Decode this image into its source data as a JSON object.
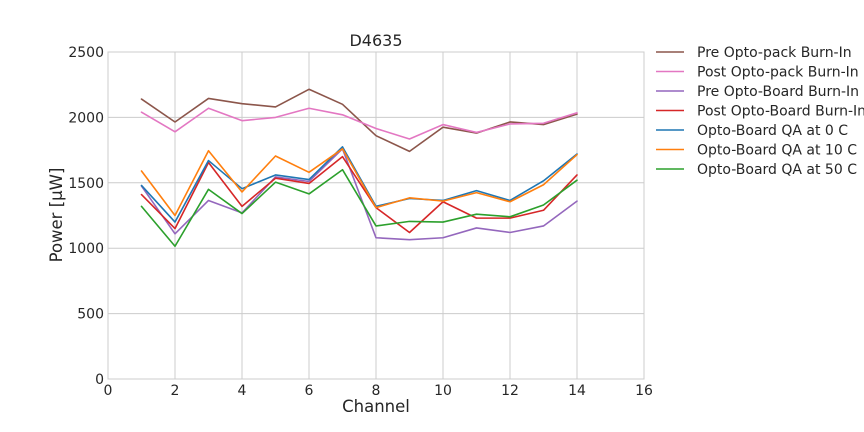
{
  "chart_data": {
    "type": "line",
    "title": "D4635",
    "xlabel": "Channel",
    "ylabel": "Power [µW]",
    "xlim": [
      0,
      16
    ],
    "ylim": [
      0,
      2500
    ],
    "xticks": [
      0,
      2,
      4,
      6,
      8,
      10,
      12,
      14,
      16
    ],
    "yticks": [
      0,
      500,
      1000,
      1500,
      2000,
      2500
    ],
    "grid": true,
    "legend_position": "outside-right",
    "x": [
      1,
      2,
      3,
      4,
      5,
      6,
      7,
      8,
      9,
      10,
      11,
      12,
      13,
      14
    ],
    "series": [
      {
        "name": "Pre Opto-pack Burn-In",
        "color": "#8c564b",
        "values": [
          2140,
          1965,
          2145,
          2105,
          2080,
          2215,
          2100,
          1860,
          1740,
          1925,
          1880,
          1965,
          1945,
          2025
        ]
      },
      {
        "name": "Post Opto-pack Burn-In",
        "color": "#e377c2",
        "values": [
          2040,
          1890,
          2070,
          1975,
          2000,
          2070,
          2020,
          1915,
          1835,
          1945,
          1885,
          1950,
          1955,
          2035
        ]
      },
      {
        "name": "Pre Opto-Board Burn-In",
        "color": "#9467bd",
        "values": [
          1475,
          1110,
          1365,
          1270,
          1545,
          1510,
          1760,
          1080,
          1065,
          1080,
          1155,
          1120,
          1170,
          1360
        ]
      },
      {
        "name": "Post Opto-Board Burn-In",
        "color": "#d62728",
        "values": [
          1410,
          1150,
          1655,
          1320,
          1535,
          1495,
          1700,
          1310,
          1120,
          1355,
          1230,
          1230,
          1290,
          1560
        ]
      },
      {
        "name": "Opto-Board QA at 0 C",
        "color": "#1f77b4",
        "values": [
          1480,
          1200,
          1670,
          1455,
          1560,
          1525,
          1775,
          1320,
          1380,
          1365,
          1440,
          1365,
          1515,
          1720
        ]
      },
      {
        "name": "Opto-Board QA at 10 C",
        "color": "#ff7f0e",
        "values": [
          1590,
          1250,
          1745,
          1430,
          1705,
          1580,
          1760,
          1310,
          1385,
          1360,
          1425,
          1355,
          1485,
          1715
        ]
      },
      {
        "name": "Opto-Board QA at 50 C",
        "color": "#2ca02c",
        "values": [
          1320,
          1015,
          1450,
          1265,
          1505,
          1415,
          1600,
          1170,
          1205,
          1200,
          1260,
          1240,
          1330,
          1520
        ]
      }
    ]
  }
}
